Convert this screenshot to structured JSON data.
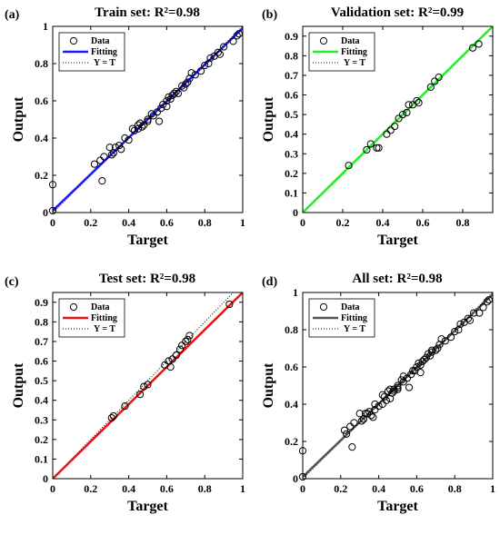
{
  "chart_data": [
    {
      "type": "scatter",
      "panel_label": "(a)",
      "title": "Train set: R²=0.98",
      "xlabel": "Target",
      "ylabel": "Output",
      "xlim": [
        0,
        1
      ],
      "ylim": [
        0,
        1
      ],
      "xticks": [
        "0",
        "0.2",
        "0.4",
        "0.6",
        "0.8",
        "1"
      ],
      "yticks": [
        "0",
        "0.2",
        "0.4",
        "0.6",
        "0.8",
        "1"
      ],
      "legend": {
        "position": "top-left",
        "entries": [
          "Data",
          "Fitting",
          "Y = T"
        ]
      },
      "fit_color": "#1a1aff",
      "fit_line": {
        "slope": 0.98,
        "intercept": 0.01
      },
      "series": [
        {
          "name": "Data",
          "x": [
            0.0,
            0.0,
            0.22,
            0.25,
            0.26,
            0.27,
            0.3,
            0.31,
            0.32,
            0.33,
            0.35,
            0.36,
            0.38,
            0.4,
            0.42,
            0.43,
            0.45,
            0.45,
            0.46,
            0.47,
            0.48,
            0.5,
            0.5,
            0.52,
            0.53,
            0.55,
            0.56,
            0.57,
            0.58,
            0.6,
            0.6,
            0.61,
            0.62,
            0.63,
            0.64,
            0.65,
            0.66,
            0.68,
            0.69,
            0.7,
            0.71,
            0.72,
            0.73,
            0.75,
            0.78,
            0.8,
            0.82,
            0.83,
            0.85,
            0.87,
            0.88,
            0.9,
            0.95,
            0.97,
            0.98
          ],
          "y": [
            0.15,
            0.01,
            0.26,
            0.28,
            0.17,
            0.3,
            0.35,
            0.31,
            0.32,
            0.35,
            0.36,
            0.34,
            0.4,
            0.39,
            0.45,
            0.44,
            0.47,
            0.45,
            0.48,
            0.46,
            0.47,
            0.5,
            0.49,
            0.53,
            0.52,
            0.54,
            0.49,
            0.56,
            0.58,
            0.6,
            0.57,
            0.62,
            0.61,
            0.63,
            0.64,
            0.65,
            0.64,
            0.68,
            0.67,
            0.69,
            0.7,
            0.72,
            0.75,
            0.74,
            0.76,
            0.79,
            0.8,
            0.83,
            0.84,
            0.86,
            0.85,
            0.89,
            0.92,
            0.95,
            0.96
          ]
        }
      ]
    },
    {
      "type": "scatter",
      "panel_label": "(b)",
      "title": "Validation set: R²=0.99",
      "xlabel": "Target",
      "ylabel": "Output",
      "xlim": [
        0,
        0.95
      ],
      "ylim": [
        0,
        0.95
      ],
      "xticks": [
        "0",
        "0.2",
        "0.4",
        "0.6",
        "0.8"
      ],
      "yticks": [
        "0",
        "0.1",
        "0.2",
        "0.3",
        "0.4",
        "0.5",
        "0.6",
        "0.7",
        "0.8",
        "0.9"
      ],
      "legend": {
        "position": "top-left",
        "entries": [
          "Data",
          "Fitting",
          "Y = T"
        ]
      },
      "fit_color": "#22ee22",
      "fit_line": {
        "slope": 1.0,
        "intercept": 0.0
      },
      "series": [
        {
          "name": "Data",
          "x": [
            0.23,
            0.32,
            0.34,
            0.37,
            0.38,
            0.42,
            0.44,
            0.46,
            0.48,
            0.5,
            0.52,
            0.53,
            0.55,
            0.57,
            0.58,
            0.64,
            0.66,
            0.68,
            0.85,
            0.88
          ],
          "y": [
            0.24,
            0.32,
            0.35,
            0.33,
            0.33,
            0.4,
            0.42,
            0.44,
            0.48,
            0.5,
            0.51,
            0.55,
            0.55,
            0.57,
            0.56,
            0.64,
            0.67,
            0.69,
            0.84,
            0.86
          ]
        }
      ]
    },
    {
      "type": "scatter",
      "panel_label": "(c)",
      "title": "Test set: R²=0.98",
      "xlabel": "Target",
      "ylabel": "Output",
      "xlim": [
        0,
        1
      ],
      "ylim": [
        0,
        0.95
      ],
      "xticks": [
        "0",
        "0.2",
        "0.4",
        "0.6",
        "0.8",
        "1"
      ],
      "yticks": [
        "0",
        "0.1",
        "0.2",
        "0.3",
        "0.4",
        "0.5",
        "0.6",
        "0.7",
        "0.8",
        "0.9"
      ],
      "legend": {
        "position": "top-left",
        "entries": [
          "Data",
          "Fitting",
          "Y = T"
        ]
      },
      "fit_color": "#ee1111",
      "fit_line": {
        "slope": 0.95,
        "intercept": 0.0
      },
      "series": [
        {
          "name": "Data",
          "x": [
            0.31,
            0.32,
            0.38,
            0.46,
            0.48,
            0.5,
            0.59,
            0.61,
            0.62,
            0.63,
            0.65,
            0.67,
            0.68,
            0.7,
            0.71,
            0.72,
            0.93
          ],
          "y": [
            0.31,
            0.32,
            0.37,
            0.43,
            0.47,
            0.48,
            0.58,
            0.6,
            0.57,
            0.61,
            0.63,
            0.66,
            0.68,
            0.7,
            0.71,
            0.73,
            0.89
          ]
        }
      ]
    },
    {
      "type": "scatter",
      "panel_label": "(d)",
      "title": "All set: R²=0.98",
      "xlabel": "Target",
      "ylabel": "Output",
      "xlim": [
        0,
        1
      ],
      "ylim": [
        0,
        1
      ],
      "xticks": [
        "0",
        "0.2",
        "0.4",
        "0.6",
        "0.8",
        "1"
      ],
      "yticks": [
        "0",
        "0.2",
        "0.4",
        "0.6",
        "0.8",
        "1"
      ],
      "legend": {
        "position": "top-left",
        "entries": [
          "Data",
          "Fitting",
          "Y = T"
        ]
      },
      "fit_color": "#555555",
      "fit_line": {
        "slope": 0.98,
        "intercept": 0.01
      },
      "series": [
        {
          "name": "Data",
          "x": [
            0.0,
            0.0,
            0.22,
            0.23,
            0.25,
            0.26,
            0.27,
            0.3,
            0.31,
            0.32,
            0.32,
            0.33,
            0.34,
            0.35,
            0.36,
            0.37,
            0.38,
            0.38,
            0.4,
            0.42,
            0.42,
            0.43,
            0.44,
            0.45,
            0.46,
            0.46,
            0.47,
            0.48,
            0.48,
            0.5,
            0.5,
            0.5,
            0.52,
            0.53,
            0.53,
            0.55,
            0.56,
            0.57,
            0.58,
            0.59,
            0.6,
            0.61,
            0.62,
            0.62,
            0.63,
            0.64,
            0.65,
            0.66,
            0.67,
            0.68,
            0.68,
            0.7,
            0.71,
            0.72,
            0.73,
            0.75,
            0.78,
            0.8,
            0.82,
            0.83,
            0.85,
            0.87,
            0.88,
            0.9,
            0.93,
            0.95,
            0.97,
            0.98
          ],
          "y": [
            0.15,
            0.01,
            0.26,
            0.24,
            0.28,
            0.17,
            0.3,
            0.35,
            0.31,
            0.32,
            0.32,
            0.35,
            0.35,
            0.36,
            0.34,
            0.33,
            0.4,
            0.37,
            0.39,
            0.45,
            0.4,
            0.44,
            0.42,
            0.47,
            0.48,
            0.43,
            0.46,
            0.47,
            0.48,
            0.5,
            0.49,
            0.48,
            0.53,
            0.52,
            0.55,
            0.54,
            0.49,
            0.56,
            0.58,
            0.58,
            0.6,
            0.62,
            0.61,
            0.57,
            0.63,
            0.64,
            0.65,
            0.67,
            0.66,
            0.68,
            0.69,
            0.69,
            0.7,
            0.72,
            0.75,
            0.74,
            0.76,
            0.79,
            0.8,
            0.83,
            0.84,
            0.86,
            0.85,
            0.89,
            0.89,
            0.92,
            0.95,
            0.96
          ]
        }
      ]
    }
  ]
}
